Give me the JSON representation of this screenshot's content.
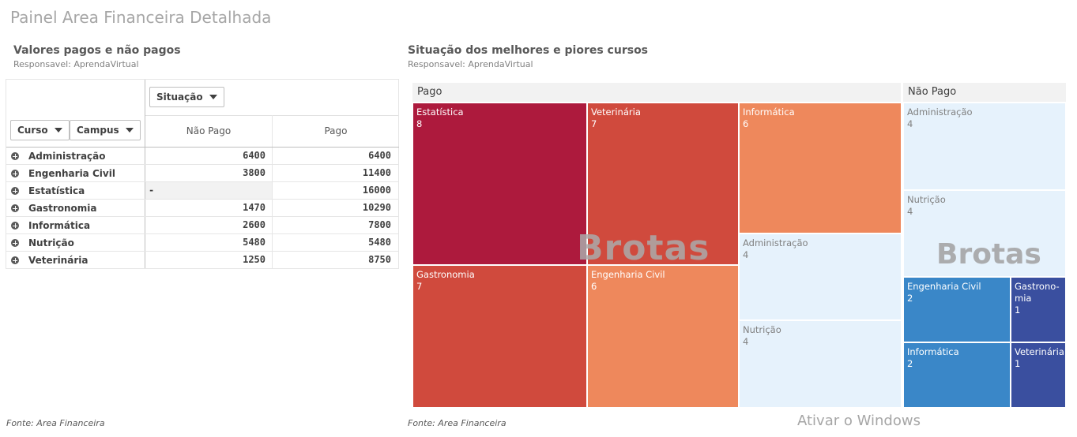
{
  "page_title": "Painel Area Financeira Detalhada",
  "left_panel": {
    "title": "Valores pagos e não pagos",
    "subtitle": "Responsavel: AprendaVirtual",
    "footer": "Fonte: Area Financeira",
    "dim_buttons": {
      "situacao": "Situação",
      "curso": "Curso",
      "campus": "Campus"
    },
    "columns": [
      "Não Pago",
      "Pago"
    ],
    "rows": [
      {
        "label": "Administração",
        "nao_pago": "6400",
        "pago": "6400"
      },
      {
        "label": "Engenharia Civil",
        "nao_pago": "3800",
        "pago": "11400"
      },
      {
        "label": "Estatística",
        "nao_pago": "-",
        "pago": "16000"
      },
      {
        "label": "Gastronomia",
        "nao_pago": "1470",
        "pago": "10290"
      },
      {
        "label": "Informática",
        "nao_pago": "2600",
        "pago": "7800"
      },
      {
        "label": "Nutrição",
        "nao_pago": "5480",
        "pago": "5480"
      },
      {
        "label": "Veterinária",
        "nao_pago": "1250",
        "pago": "8750"
      }
    ]
  },
  "right_panel": {
    "title": "Situação dos melhores e piores cursos",
    "subtitle": "Responsavel: AprendaVirtual",
    "footer": "Fonte: Area Financeira"
  },
  "watermark": "Brotas",
  "windows_notice": "Ativar o Windows",
  "chart_data": [
    {
      "type": "table",
      "title": "Valores pagos e não pagos",
      "columns": [
        "Curso",
        "Não Pago",
        "Pago"
      ],
      "rows": [
        [
          "Administração",
          6400,
          6400
        ],
        [
          "Engenharia Civil",
          3800,
          11400
        ],
        [
          "Estatística",
          null,
          16000
        ],
        [
          "Gastronomia",
          1470,
          10290
        ],
        [
          "Informática",
          2600,
          7800
        ],
        [
          "Nutrição",
          5480,
          5480
        ],
        [
          "Veterinária",
          1250,
          8750
        ]
      ]
    },
    {
      "type": "treemap",
      "title": "Situação dos melhores e piores cursos",
      "groups": [
        {
          "name": "Pago",
          "items": [
            {
              "name": "Estatística",
              "value": 8,
              "color": "#ad1a3d"
            },
            {
              "name": "Veterinária",
              "value": 7,
              "color": "#d04a3d"
            },
            {
              "name": "Gastronomia",
              "value": 7,
              "color": "#d04a3d"
            },
            {
              "name": "Informática",
              "value": 6,
              "color": "#ee885c"
            },
            {
              "name": "Engenharia Civil",
              "value": 6,
              "color": "#ee885c"
            },
            {
              "name": "Administração",
              "value": 4,
              "color": "#e6f2fc"
            },
            {
              "name": "Nutrição",
              "value": 4,
              "color": "#e6f2fc"
            }
          ]
        },
        {
          "name": "Não Pago",
          "items": [
            {
              "name": "Administração",
              "value": 4,
              "color": "#e6f2fc"
            },
            {
              "name": "Nutrição",
              "value": 4,
              "color": "#e6f2fc"
            },
            {
              "name": "Engenharia Civil",
              "value": 2,
              "color": "#3a87c8"
            },
            {
              "name": "Gastronomia",
              "label": "Gastrono-mia",
              "value": 1,
              "color": "#3a4f9f"
            },
            {
              "name": "Informática",
              "value": 2,
              "color": "#3a87c8"
            },
            {
              "name": "Veterinária",
              "value": 1,
              "color": "#3a4f9f"
            }
          ]
        }
      ]
    }
  ]
}
